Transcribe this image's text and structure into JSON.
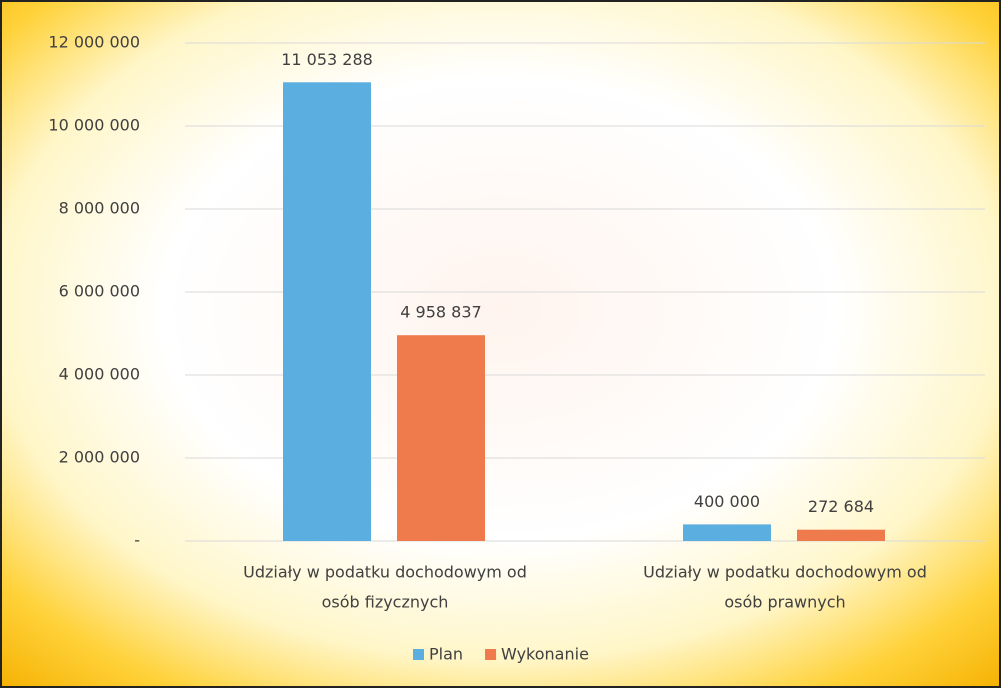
{
  "chart_data": {
    "type": "bar",
    "categories": [
      [
        "Udziały w podatku dochodowym od",
        "osób fizycznych"
      ],
      [
        "Udziały w podatku dochodowym od",
        "osób prawnych"
      ]
    ],
    "series": [
      {
        "name": "Plan",
        "color": "#5aaee0",
        "values": [
          11053288,
          400000
        ],
        "value_labels": [
          "11 053 288",
          "400 000"
        ]
      },
      {
        "name": "Wykonanie",
        "color": "#ef7a4c",
        "values": [
          4958837,
          272684
        ],
        "value_labels": [
          "4 958 837",
          "272 684"
        ]
      }
    ],
    "ylim": [
      0,
      12000000
    ],
    "yticks": [
      {
        "value": 0,
        "label": "-"
      },
      {
        "value": 2000000,
        "label": "2 000 000"
      },
      {
        "value": 4000000,
        "label": "4 000 000"
      },
      {
        "value": 6000000,
        "label": "6 000 000"
      },
      {
        "value": 8000000,
        "label": "8 000 000"
      },
      {
        "value": 10000000,
        "label": "10 000 000"
      },
      {
        "value": 12000000,
        "label": "12 000 000"
      }
    ],
    "grid": true,
    "legend": "bottom"
  }
}
